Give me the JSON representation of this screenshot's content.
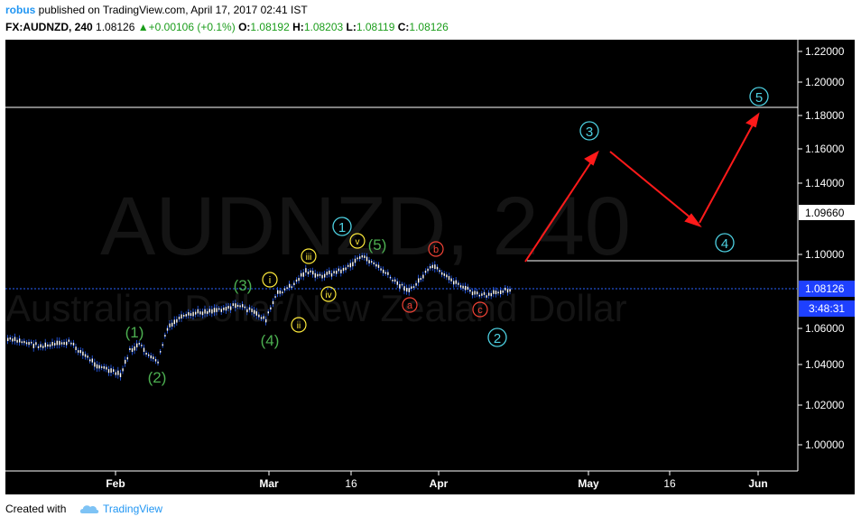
{
  "header": {
    "author": "robus",
    "published_text": " published on TradingView.com, April 17, 2017 02:41 IST",
    "symbol": "FX:AUDNZD, 240",
    "last": "1.08126",
    "change": "▲+0.00106 (+0.1%)",
    "o_label": "O:",
    "o_value": "1.08192",
    "h_label": "H:",
    "h_value": "1.08203",
    "l_label": "L:",
    "l_value": "1.08119",
    "c_label": "C:",
    "c_value": "1.08126"
  },
  "watermark": {
    "symbol": "AUDNZD, 240",
    "description": "Australian Dollar/New Zealand Dollar"
  },
  "price_axis": {
    "ticks": [
      "1.22000",
      "1.20000",
      "1.18000",
      "1.16000",
      "1.14000",
      "1.10000",
      "1.06000",
      "1.04000",
      "1.02000",
      "1.00000"
    ],
    "highlighted_level": "1.09660",
    "current_price": "1.08126",
    "countdown": "3:48:31"
  },
  "time_axis": {
    "labels": [
      "Feb",
      "Mar",
      "16",
      "Apr",
      "May",
      "16",
      "Jun"
    ]
  },
  "wave_labels": {
    "green": [
      "(1)",
      "(2)",
      "(3)",
      "(4)",
      "(5)"
    ],
    "yellow": [
      "i",
      "ii",
      "iii",
      "iv",
      "v"
    ],
    "red": [
      "a",
      "b",
      "c"
    ],
    "cyan": [
      "1",
      "2",
      "3",
      "4",
      "5"
    ]
  },
  "footer": {
    "created_with": "Created with",
    "brand": "TradingView"
  },
  "colors": {
    "background": "#000000",
    "candle": "#ffffff",
    "wick": "#2962ff",
    "green_label": "#4caf50",
    "yellow_label": "#ffeb3b",
    "red_label": "#f44336",
    "cyan_label": "#4dd0e1",
    "arrow": "#ff1a1a",
    "price_tag": "#1e40ff"
  }
}
